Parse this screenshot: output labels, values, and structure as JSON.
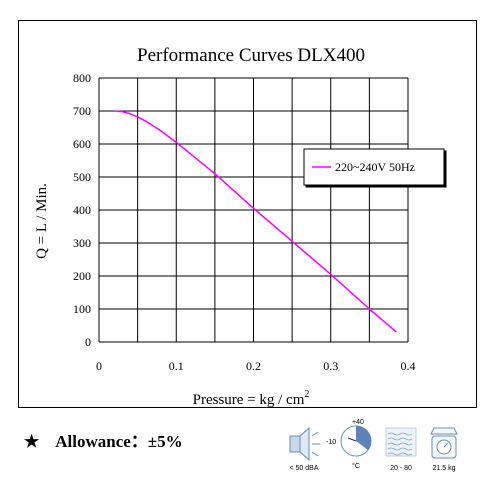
{
  "chart_data": {
    "type": "line",
    "title": "Performance  Curves  DLX400",
    "xlabel": "Pressure = kg / cm",
    "xlabel_sup": "2",
    "ylabel": "Q = L / Min.",
    "xlim": [
      0,
      0.4
    ],
    "ylim": [
      0,
      800
    ],
    "x_ticks": [
      "0",
      "0.1",
      "0.2",
      "0.3",
      "0.4"
    ],
    "y_ticks": [
      "0",
      "100",
      "200",
      "300",
      "400",
      "500",
      "600",
      "700",
      "800"
    ],
    "grid": true,
    "legend_position": "right",
    "series": [
      {
        "name": "220~240V 50Hz",
        "color": "#ff00ff",
        "x": [
          0.02,
          0.03,
          0.04,
          0.05,
          0.06,
          0.08,
          0.1,
          0.15,
          0.2,
          0.25,
          0.3,
          0.35,
          0.385
        ],
        "y": [
          700,
          698,
          692,
          682,
          670,
          640,
          605,
          510,
          405,
          305,
          205,
          100,
          30
        ]
      }
    ]
  },
  "footer": {
    "star": "★",
    "allowance": "Allowance：±5%",
    "specs": {
      "noise_label": "< 50 dBA",
      "temp_high": "+40",
      "temp_low": "-10",
      "temp_unit": "°C",
      "humidity_label": "20 - 80",
      "weight_label": "21.5 kg"
    },
    "icons": [
      "speaker-noise-icon",
      "thermometer-dial-icon",
      "humidity-waves-icon",
      "weight-scale-icon"
    ]
  }
}
